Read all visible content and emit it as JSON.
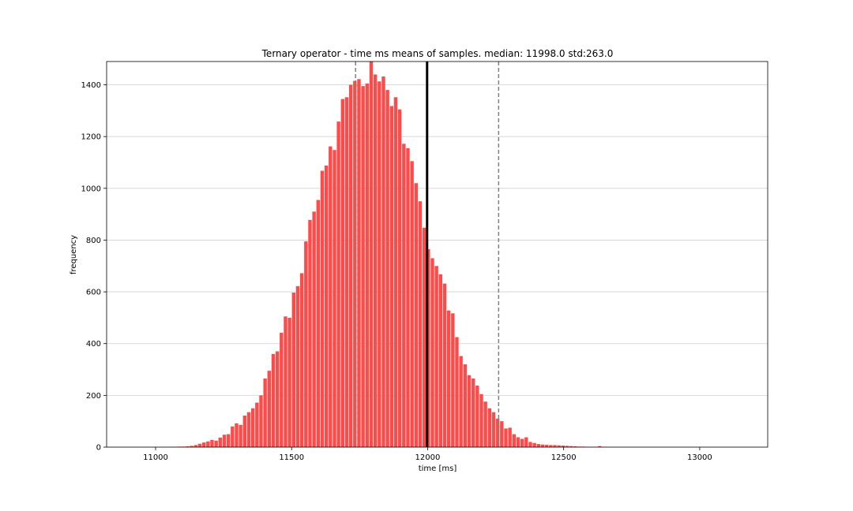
{
  "chart_data": {
    "type": "bar",
    "title": "Ternary operator - time ms means of samples. median: 11998.0 std:263.0",
    "xlabel": "time [ms]",
    "ylabel": "frequency",
    "xlim": [
      10820,
      13250
    ],
    "ylim": [
      0,
      1490
    ],
    "x_ticks": [
      11000,
      11500,
      12000,
      12500,
      13000
    ],
    "y_ticks": [
      0,
      200,
      400,
      600,
      800,
      1000,
      1200,
      1400
    ],
    "grid": "horizontal",
    "bar_color": "#ff4a4a",
    "bin_width": 15,
    "bin_start": 11050,
    "frequencies": [
      1,
      1,
      2,
      2,
      3,
      5,
      8,
      13,
      18,
      22,
      28,
      25,
      37,
      48,
      50,
      80,
      92,
      86,
      122,
      135,
      150,
      172,
      200,
      265,
      295,
      360,
      370,
      442,
      505,
      500,
      597,
      622,
      672,
      795,
      878,
      910,
      955,
      1068,
      1088,
      1162,
      1148,
      1258,
      1345,
      1352,
      1400,
      1415,
      1422,
      1395,
      1405,
      1490,
      1440,
      1413,
      1432,
      1380,
      1318,
      1352,
      1305,
      1172,
      1155,
      1105,
      1020,
      950,
      848,
      765,
      730,
      700,
      668,
      632,
      528,
      517,
      425,
      352,
      320,
      278,
      265,
      238,
      205,
      176,
      150,
      135,
      110,
      100,
      72,
      75,
      50,
      38,
      32,
      38,
      20,
      16,
      12,
      10,
      9,
      8,
      8,
      7,
      6,
      5,
      4,
      3,
      2,
      2,
      1,
      1,
      1,
      4,
      1
    ],
    "median": 11998.0,
    "std": 263.0,
    "median_line": {
      "x": 11998.0,
      "color": "#000000",
      "style": "solid"
    },
    "std_lines": [
      {
        "x": 11735.0,
        "color": "#808080",
        "style": "dashed"
      },
      {
        "x": 12261.0,
        "color": "#808080",
        "style": "dashed"
      }
    ]
  }
}
